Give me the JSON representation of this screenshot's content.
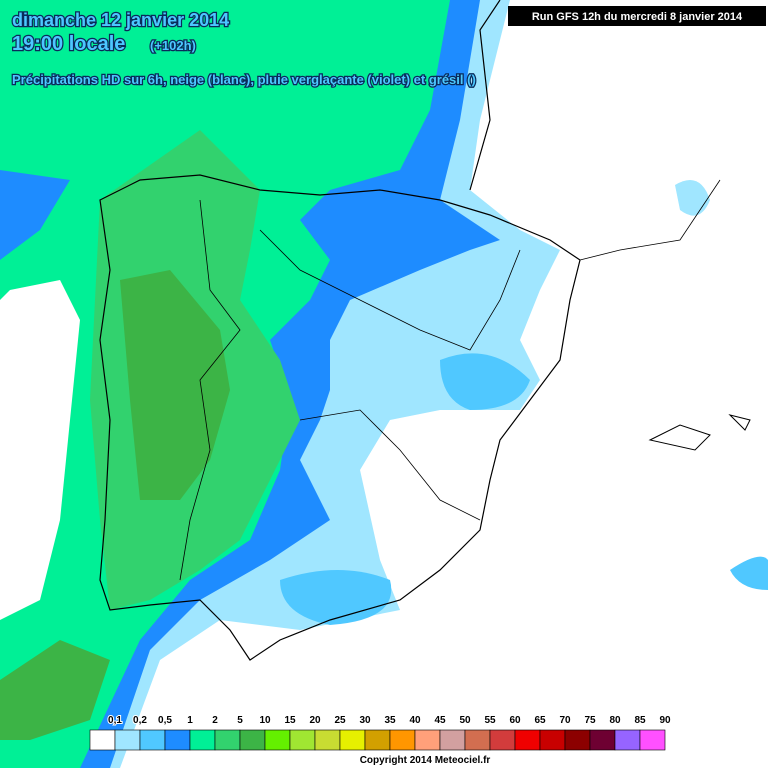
{
  "header": {
    "title": "dimanche 12 janvier 2014",
    "time": "19:00 locale",
    "lead": "(+102h)",
    "subtitle": "Précipitations HD sur 6h, neige (blanc), pluie verglaçante (violet) et grésil ()",
    "run": "Run GFS 12h du mercredi 8 janvier 2014"
  },
  "legend": [
    {
      "label": "0,1",
      "color": "#ffffff"
    },
    {
      "label": "0,2",
      "color": "#a0e6ff"
    },
    {
      "label": "0,5",
      "color": "#50c8ff"
    },
    {
      "label": "1",
      "color": "#1e8cff"
    },
    {
      "label": "2",
      "color": "#00f096"
    },
    {
      "label": "5",
      "color": "#32d26e"
    },
    {
      "label": "10",
      "color": "#3cb446"
    },
    {
      "label": "15",
      "color": "#64f000"
    },
    {
      "label": "20",
      "color": "#a0e632"
    },
    {
      "label": "25",
      "color": "#c8dc32"
    },
    {
      "label": "30",
      "color": "#e6f000"
    },
    {
      "label": "35",
      "color": "#d2a000"
    },
    {
      "label": "40",
      "color": "#ff9600"
    },
    {
      "label": "45",
      "color": "#ffa07a"
    },
    {
      "label": "50",
      "color": "#d2a0a0"
    },
    {
      "label": "55",
      "color": "#d26e50"
    },
    {
      "label": "60",
      "color": "#d23c3c"
    },
    {
      "label": "65",
      "color": "#f00000"
    },
    {
      "label": "70",
      "color": "#c80000"
    },
    {
      "label": "75",
      "color": "#8c0000"
    },
    {
      "label": "80",
      "color": "#6e0032"
    },
    {
      "label": "85",
      "color": "#9664ff"
    },
    {
      "label": "90",
      "color": "#ff50ff"
    }
  ],
  "footer": {
    "copyright": "Copyright 2014 Meteociel.fr"
  }
}
